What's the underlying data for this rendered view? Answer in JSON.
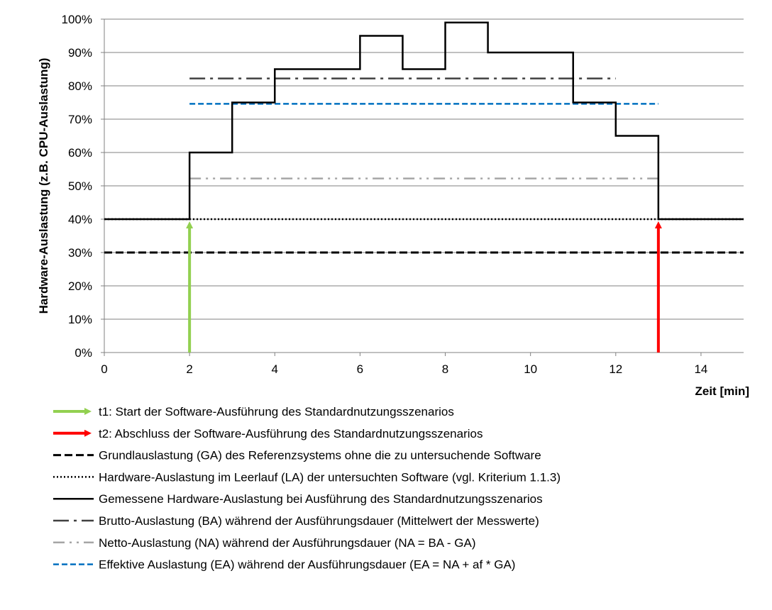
{
  "chart_data": {
    "type": "line",
    "title": "",
    "xlabel": "Zeit [min]",
    "ylabel": "Hardware-Auslastung (z.B. CPU-Auslastung)",
    "xlim": [
      0,
      15
    ],
    "ylim": [
      0,
      100
    ],
    "x_ticks": [
      0,
      2,
      4,
      6,
      8,
      10,
      12,
      14
    ],
    "y_ticks": [
      0,
      10,
      20,
      30,
      40,
      50,
      60,
      70,
      80,
      90,
      100
    ],
    "y_tick_suffix": "%",
    "grid": "horizontal",
    "legend_position": "bottom",
    "series": [
      {
        "name": "t1: Start der Software-Ausführung des Standardnutzungsszenarios",
        "kind": "arrow",
        "color": "#92D050",
        "x": 2,
        "y_from": 0,
        "y_to": 40
      },
      {
        "name": "t2: Abschluss der Software-Ausführung des Standardnutzungsszenarios",
        "kind": "arrow",
        "color": "#FF0000",
        "x": 13,
        "y_from": 0,
        "y_to": 40
      },
      {
        "name": "Grundlauslastung (GA) des Referenzsystems ohne die zu untersuchende Software",
        "kind": "hline",
        "style": "dashed",
        "color": "#000000",
        "y": 30,
        "x_from": 0,
        "x_to": 15
      },
      {
        "name": "Hardware-Auslastung im Leerlauf (LA) der untersuchten Software (vgl. Kriterium 1.1.3)",
        "kind": "hline",
        "style": "dotted",
        "color": "#000000",
        "y": 40,
        "x_from": 0,
        "x_to": 15
      },
      {
        "name": "Gemessene Hardware-Auslastung bei Ausführung des Standardnutzungsszenarios",
        "kind": "step",
        "style": "solid",
        "color": "#000000",
        "x": [
          0,
          2,
          2,
          3,
          3,
          4,
          4,
          6,
          6,
          7,
          7,
          8,
          8,
          9,
          9,
          11,
          11,
          12,
          12,
          13,
          13,
          15
        ],
        "y": [
          40,
          40,
          60,
          60,
          75,
          75,
          85,
          85,
          95,
          95,
          85,
          85,
          99,
          99,
          90,
          90,
          75,
          75,
          65,
          65,
          40,
          40
        ]
      },
      {
        "name": "Brutto-Auslastung (BA) während der Ausführungsdauer (Mittelwert der Messwerte)",
        "kind": "hline",
        "style": "dashdot",
        "color": "#404040",
        "y": 82.2,
        "x_from": 2,
        "x_to": 12
      },
      {
        "name": "Netto-Auslastung (NA) während der Ausführungsdauer (NA = BA - GA)",
        "kind": "hline",
        "style": "dashdotdot",
        "color": "#A6A6A6",
        "y": 52.2,
        "x_from": 2,
        "x_to": 13
      },
      {
        "name": "Effektive Auslastung (EA) während der Ausführungsdauer (EA = NA + af * GA)",
        "kind": "hline",
        "style": "shortdash",
        "color": "#0070C0",
        "y": 74.6,
        "x_from": 2,
        "x_to": 13
      }
    ]
  }
}
